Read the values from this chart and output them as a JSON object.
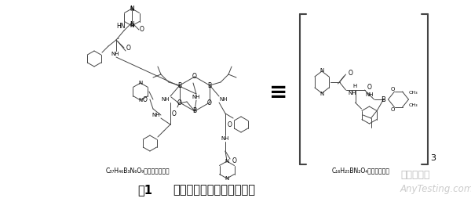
{
  "background_color": "#ffffff",
  "figure_width": 6.0,
  "figure_height": 2.67,
  "dpi": 100,
  "caption_label": "图1",
  "caption_text": "硼替佐米三聚体和单体结构",
  "caption_fontsize": 10.5,
  "watermark_text": "AnyTesting.com",
  "watermark_fontsize": 8.5,
  "watermark_color": "#bbbbbb",
  "logo_text": "嘉峪检测网",
  "logo_fontsize": 9,
  "logo_color": "#aaaaaa",
  "formula_left": "C₃₇H₄₆B₃N₆O₉（三聚硼酸酯）",
  "formula_right": "C₁₆H₂₅BN₂O₄（硼酸形式）",
  "formula_fontsize": 5.5,
  "equiv_symbol": "≡",
  "lc": "#444444",
  "lw": 0.7
}
